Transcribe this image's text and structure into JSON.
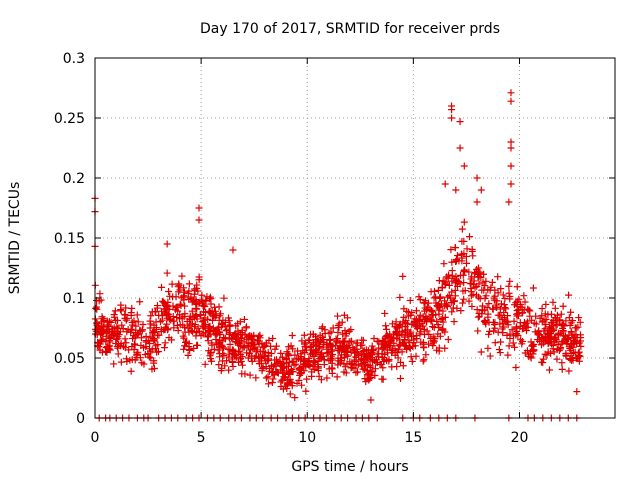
{
  "chart_data": {
    "type": "scatter",
    "title": "Day 170 of 2017, SRMTID for receiver prds",
    "xlabel": "GPS time / hours",
    "ylabel": "SRMTID / TECUs",
    "xlim": [
      0,
      24.5
    ],
    "ylim": [
      0,
      0.3
    ],
    "x_ticks": [
      0,
      5,
      10,
      15,
      20
    ],
    "x_tick_labels": [
      "0",
      "5",
      "10",
      "15",
      "20"
    ],
    "y_ticks": [
      0,
      0.05,
      0.1,
      0.15,
      0.2,
      0.25,
      0.3
    ],
    "y_tick_labels": [
      "0",
      "0.05",
      "0.1",
      "0.15",
      "0.2",
      "0.25",
      "0.3"
    ],
    "grid": true,
    "legend": "none",
    "marker": "+",
    "color": "#e00000",
    "series_note": "dense scatter of SRMTID values for many satellites; baseline points at y=0",
    "envelope": {
      "x": [
        0.0,
        0.5,
        1.0,
        1.5,
        2.0,
        2.5,
        3.0,
        3.5,
        4.0,
        4.5,
        5.0,
        5.5,
        6.0,
        6.5,
        7.0,
        7.5,
        8.0,
        8.5,
        9.0,
        9.5,
        10.0,
        10.5,
        11.0,
        11.5,
        12.0,
        12.5,
        13.0,
        13.5,
        14.0,
        14.5,
        15.0,
        15.5,
        16.0,
        16.5,
        17.0,
        17.5,
        18.0,
        18.5,
        19.0,
        19.5,
        20.0,
        20.5,
        21.0,
        21.5,
        22.0,
        22.5,
        23.0
      ],
      "median": [
        0.085,
        0.065,
        0.07,
        0.07,
        0.065,
        0.06,
        0.08,
        0.09,
        0.09,
        0.085,
        0.09,
        0.075,
        0.065,
        0.06,
        0.06,
        0.055,
        0.05,
        0.045,
        0.04,
        0.045,
        0.05,
        0.055,
        0.055,
        0.06,
        0.055,
        0.05,
        0.045,
        0.055,
        0.065,
        0.07,
        0.075,
        0.075,
        0.08,
        0.1,
        0.12,
        0.13,
        0.11,
        0.09,
        0.085,
        0.08,
        0.085,
        0.07,
        0.07,
        0.07,
        0.065,
        0.065,
        0.06
      ],
      "spread": [
        0.03,
        0.025,
        0.03,
        0.03,
        0.03,
        0.03,
        0.035,
        0.035,
        0.035,
        0.035,
        0.04,
        0.03,
        0.03,
        0.025,
        0.025,
        0.025,
        0.02,
        0.02,
        0.02,
        0.02,
        0.025,
        0.025,
        0.025,
        0.025,
        0.025,
        0.02,
        0.02,
        0.025,
        0.025,
        0.03,
        0.03,
        0.03,
        0.035,
        0.045,
        0.05,
        0.05,
        0.045,
        0.035,
        0.035,
        0.04,
        0.035,
        0.03,
        0.03,
        0.03,
        0.03,
        0.03,
        0.03
      ]
    },
    "notable_points": [
      {
        "x": 0.0,
        "y": 0.183
      },
      {
        "x": 0.0,
        "y": 0.172
      },
      {
        "x": 0.0,
        "y": 0.143
      },
      {
        "x": 4.9,
        "y": 0.175
      },
      {
        "x": 4.9,
        "y": 0.165
      },
      {
        "x": 3.4,
        "y": 0.145
      },
      {
        "x": 16.8,
        "y": 0.26
      },
      {
        "x": 16.8,
        "y": 0.257
      },
      {
        "x": 16.8,
        "y": 0.25
      },
      {
        "x": 17.2,
        "y": 0.247
      },
      {
        "x": 17.2,
        "y": 0.225
      },
      {
        "x": 17.4,
        "y": 0.21
      },
      {
        "x": 16.5,
        "y": 0.195
      },
      {
        "x": 17.0,
        "y": 0.19
      },
      {
        "x": 18.0,
        "y": 0.2
      },
      {
        "x": 18.2,
        "y": 0.19
      },
      {
        "x": 18.0,
        "y": 0.18
      },
      {
        "x": 19.6,
        "y": 0.271
      },
      {
        "x": 19.6,
        "y": 0.264
      },
      {
        "x": 19.6,
        "y": 0.23
      },
      {
        "x": 19.6,
        "y": 0.225
      },
      {
        "x": 19.6,
        "y": 0.21
      },
      {
        "x": 19.6,
        "y": 0.195
      },
      {
        "x": 19.5,
        "y": 0.18
      },
      {
        "x": 14.5,
        "y": 0.118
      },
      {
        "x": 6.5,
        "y": 0.14
      },
      {
        "x": 9.2,
        "y": 0.02
      },
      {
        "x": 13.0,
        "y": 0.015
      },
      {
        "x": 22.7,
        "y": 0.022
      }
    ],
    "baseline_x": [
      0.2,
      0.5,
      0.7,
      1.0,
      1.3,
      1.6,
      2.0,
      2.3,
      2.5,
      3.0,
      3.3,
      3.6,
      3.9,
      4.3,
      4.6,
      4.9,
      5.3,
      5.6,
      5.9,
      6.3,
      6.6,
      6.9,
      7.3,
      7.6,
      7.9,
      8.3,
      8.6,
      9.0,
      9.3,
      9.6,
      9.9,
      10.3,
      10.6,
      10.9,
      11.3,
      11.6,
      11.9,
      12.3,
      12.6,
      12.9,
      13.3,
      14.5,
      15.0,
      15.3,
      15.8,
      16.2,
      16.6,
      17.0,
      17.9,
      19.5,
      20.4,
      20.7,
      21.1,
      21.5,
      21.9,
      22.3,
      22.7
    ]
  }
}
